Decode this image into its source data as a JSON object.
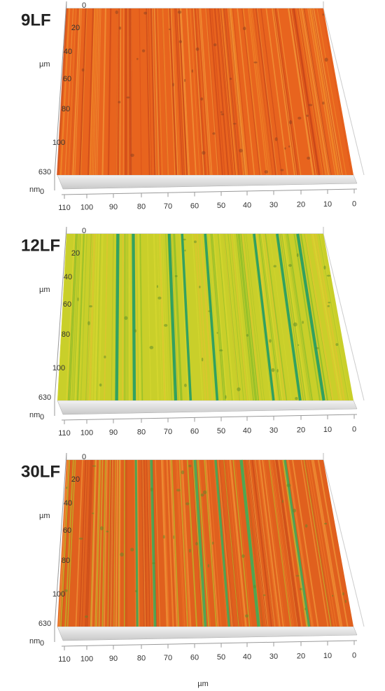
{
  "panels": [
    {
      "label": "9LF",
      "y_ticks": [
        "0",
        "20",
        "40",
        "60",
        "80",
        "100"
      ],
      "y_unit": "µm",
      "z_top": "630",
      "z_unit": "nm",
      "z_bottom": "0",
      "x_ticks": [
        "110",
        "100",
        "90",
        "80",
        "70",
        "60",
        "50",
        "40",
        "30",
        "20",
        "10",
        "0"
      ]
    },
    {
      "label": "12LF",
      "y_ticks": [
        "0",
        "20",
        "40",
        "60",
        "80",
        "100"
      ],
      "y_unit": "µm",
      "z_top": "630",
      "z_unit": "nm",
      "z_bottom": "0",
      "x_ticks": [
        "110",
        "100",
        "90",
        "80",
        "70",
        "60",
        "50",
        "40",
        "30",
        "20",
        "10",
        "0"
      ]
    },
    {
      "label": "30LF",
      "y_ticks": [
        "0",
        "20",
        "40",
        "60",
        "80",
        "100"
      ],
      "y_unit": "µm",
      "z_top": "630",
      "z_unit": "nm",
      "z_bottom": "0",
      "x_ticks": [
        "110",
        "100",
        "90",
        "80",
        "70",
        "60",
        "50",
        "40",
        "30",
        "20",
        "10",
        "0"
      ]
    }
  ],
  "x_unit": "µm"
}
